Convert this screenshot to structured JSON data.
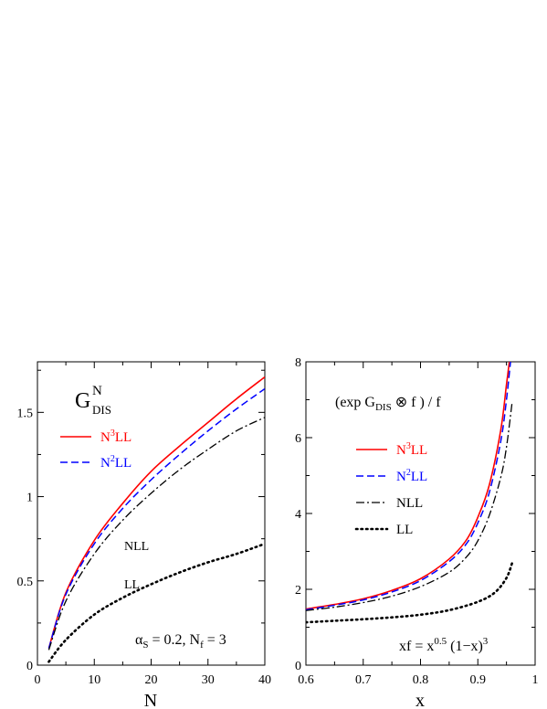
{
  "chart_data": [
    {
      "type": "line",
      "title": "",
      "xlabel": "N",
      "ylabel": "",
      "xlim": [
        0,
        40
      ],
      "ylim": [
        0,
        1.8
      ],
      "xticks": [
        "0",
        "10",
        "20",
        "30",
        "40"
      ],
      "yticks": [
        "0",
        "0.5",
        "1",
        "1.5"
      ],
      "grid": false,
      "annotations": {
        "G_base": "G",
        "G_sup": "N",
        "G_sub": "DIS",
        "nll_label": "NLL",
        "ll_label": "LL",
        "params_alpha": "α",
        "params_alpha_sub": "S",
        "params_alpha_val": " = 0.2,  N",
        "params_nf_sub": "f",
        "params_nf_val": " = 3"
      },
      "legend": {
        "position": "top-left",
        "entries": [
          {
            "base": "N",
            "sup": "3",
            "tail": "LL",
            "color": "#ff0000",
            "dash": "solid"
          },
          {
            "base": "N",
            "sup": "2",
            "tail": "LL",
            "color": "#0000ff",
            "dash": "dashed"
          }
        ]
      },
      "series": [
        {
          "name": "N3LL",
          "color": "#ff0000",
          "dash": "solid",
          "x": [
            2,
            5,
            10,
            15,
            20,
            25,
            30,
            35,
            40
          ],
          "y": [
            0.1,
            0.43,
            0.74,
            0.96,
            1.15,
            1.3,
            1.44,
            1.58,
            1.71
          ]
        },
        {
          "name": "N2LL",
          "color": "#0000ff",
          "dash": "dashed",
          "x": [
            2,
            5,
            10,
            15,
            20,
            25,
            30,
            35,
            40
          ],
          "y": [
            0.1,
            0.42,
            0.72,
            0.93,
            1.1,
            1.25,
            1.39,
            1.52,
            1.64
          ]
        },
        {
          "name": "NLL",
          "color": "#000000",
          "dash": "dashdot",
          "x": [
            2,
            5,
            10,
            15,
            20,
            25,
            30,
            35,
            40
          ],
          "y": [
            0.09,
            0.38,
            0.66,
            0.86,
            1.02,
            1.16,
            1.28,
            1.39,
            1.47
          ]
        },
        {
          "name": "LL",
          "color": "#000000",
          "dash": "dotted",
          "x": [
            2,
            5,
            10,
            15,
            20,
            25,
            30,
            35,
            40
          ],
          "y": [
            0.02,
            0.15,
            0.3,
            0.4,
            0.48,
            0.55,
            0.61,
            0.66,
            0.72
          ]
        }
      ]
    },
    {
      "type": "line",
      "title": "",
      "xlabel": "x",
      "ylabel": "",
      "xlim": [
        0.6,
        1.0
      ],
      "ylim": [
        0,
        8
      ],
      "xticks": [
        "0.6",
        "0.7",
        "0.8",
        "0.9",
        "1"
      ],
      "yticks": [
        "0",
        "2",
        "4",
        "6",
        "8"
      ],
      "grid": false,
      "annotations": {
        "expr_pre": "(exp G",
        "expr_sub": "DIS",
        "expr_post": " ⊗ f ) / f",
        "xf_pre": "xf = x",
        "xf_sup1": "0.5",
        "xf_mid": " (1−x)",
        "xf_sup2": "3"
      },
      "legend": {
        "position": "top-left",
        "entries": [
          {
            "base": "N",
            "sup": "3",
            "tail": "LL",
            "color": "#ff0000",
            "dash": "solid"
          },
          {
            "base": "N",
            "sup": "2",
            "tail": "LL",
            "color": "#0000ff",
            "dash": "dashed"
          },
          {
            "base": "NLL",
            "sup": "",
            "tail": "",
            "color": "#000000",
            "dash": "dashdot"
          },
          {
            "base": "LL",
            "sup": "",
            "tail": "",
            "color": "#000000",
            "dash": "dotted"
          }
        ]
      },
      "series": [
        {
          "name": "N3LL",
          "color": "#ff0000",
          "dash": "solid",
          "x": [
            0.6,
            0.65,
            0.7,
            0.75,
            0.8,
            0.85,
            0.88,
            0.9,
            0.92,
            0.94,
            0.95,
            0.955
          ],
          "y": [
            1.48,
            1.6,
            1.75,
            1.97,
            2.28,
            2.8,
            3.3,
            3.9,
            4.75,
            6.2,
            7.4,
            8.0
          ]
        },
        {
          "name": "N2LL",
          "color": "#0000ff",
          "dash": "dashed",
          "x": [
            0.6,
            0.65,
            0.7,
            0.75,
            0.8,
            0.85,
            0.88,
            0.9,
            0.92,
            0.94,
            0.95,
            0.957
          ],
          "y": [
            1.46,
            1.58,
            1.72,
            1.93,
            2.23,
            2.73,
            3.2,
            3.75,
            4.55,
            5.9,
            7.0,
            8.0
          ]
        },
        {
          "name": "NLL",
          "color": "#000000",
          "dash": "dashdot",
          "x": [
            0.6,
            0.65,
            0.7,
            0.75,
            0.8,
            0.85,
            0.88,
            0.9,
            0.92,
            0.94,
            0.95,
            0.96
          ],
          "y": [
            1.44,
            1.53,
            1.65,
            1.82,
            2.07,
            2.45,
            2.85,
            3.28,
            3.95,
            4.95,
            5.75,
            6.95
          ]
        },
        {
          "name": "LL",
          "color": "#000000",
          "dash": "dotted",
          "x": [
            0.6,
            0.65,
            0.7,
            0.75,
            0.8,
            0.85,
            0.9,
            0.93,
            0.95,
            0.96
          ],
          "y": [
            1.13,
            1.17,
            1.21,
            1.26,
            1.33,
            1.45,
            1.67,
            1.92,
            2.3,
            2.7
          ]
        }
      ]
    }
  ]
}
